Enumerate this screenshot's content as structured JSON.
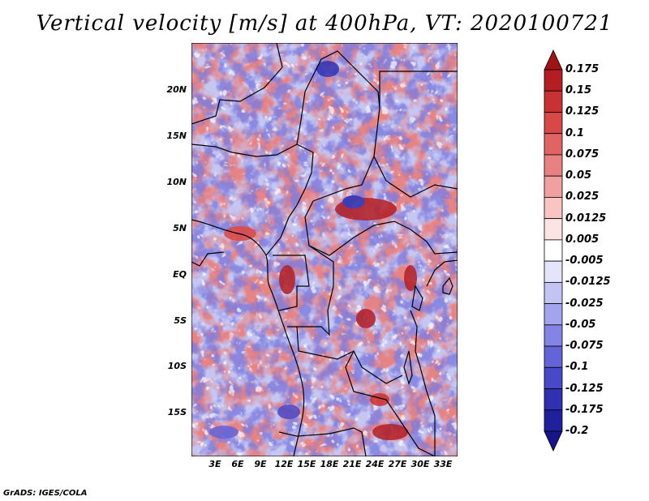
{
  "title": "Vertical velocity [m/s] at 400hPa, VT: 2020100721",
  "credit": "GrADS: IGES/COLA",
  "map": {
    "region": "Central and Southern Africa",
    "lat_labels": [
      "20N",
      "15N",
      "10N",
      "5N",
      "EQ",
      "5S",
      "10S",
      "15S"
    ],
    "lon_labels": [
      "3E",
      "6E",
      "9E",
      "12E",
      "15E",
      "18E",
      "21E",
      "24E",
      "27E",
      "30E",
      "33E"
    ]
  },
  "colorbar": {
    "labels": [
      "0.175",
      "0.15",
      "0.125",
      "0.1",
      "0.075",
      "0.05",
      "0.025",
      "0.0125",
      "0.005",
      "-0.005",
      "-0.0125",
      "-0.025",
      "-0.05",
      "-0.075",
      "-0.1",
      "-0.125",
      "-0.175",
      "-0.2"
    ],
    "colors": [
      "#a01418",
      "#b41e22",
      "#c83232",
      "#d84848",
      "#e06464",
      "#e88282",
      "#f0a0a0",
      "#f8c4c4",
      "#fde4e4",
      "#ffffff",
      "#e4e4fb",
      "#c4c4f4",
      "#a4a4ee",
      "#8484e4",
      "#6464d8",
      "#4848c8",
      "#3030b0",
      "#20209c",
      "#161688"
    ]
  }
}
